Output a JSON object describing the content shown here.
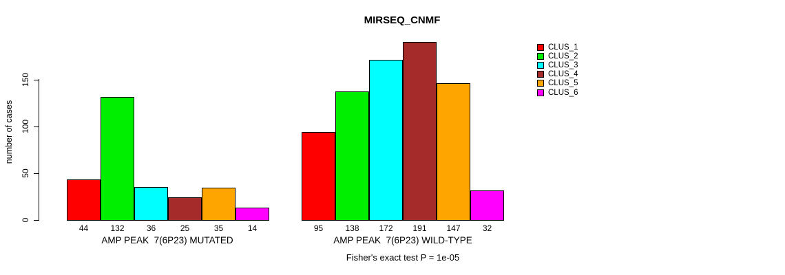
{
  "title": "MIRSEQ_CNMF",
  "chart_data": {
    "type": "bar",
    "title": "MIRSEQ_CNMF",
    "xlabel": "",
    "ylabel": "number of cases",
    "ylim": [
      0,
      191
    ],
    "yticks": [
      0,
      50,
      100,
      150
    ],
    "grid": false,
    "legend_position": "right-outside",
    "categories": [
      "AMP PEAK  7(6P23) MUTATED",
      "AMP PEAK  7(6P23) WILD-TYPE"
    ],
    "series": [
      {
        "name": "CLUS_1",
        "color": "#FF0000",
        "values": [
          44,
          95
        ]
      },
      {
        "name": "CLUS_2",
        "color": "#00EE00",
        "values": [
          132,
          138
        ]
      },
      {
        "name": "CLUS_3",
        "color": "#00FFFF",
        "values": [
          36,
          172
        ]
      },
      {
        "name": "CLUS_4",
        "color": "#A52A2A",
        "values": [
          25,
          191
        ]
      },
      {
        "name": "CLUS_5",
        "color": "#FFA500",
        "values": [
          35,
          147
        ]
      },
      {
        "name": "CLUS_6",
        "color": "#FF00FF",
        "values": [
          14,
          32
        ]
      }
    ],
    "bar_value_labels_shown": true,
    "annotation": "Fisher's exact test P = 1e-05"
  }
}
